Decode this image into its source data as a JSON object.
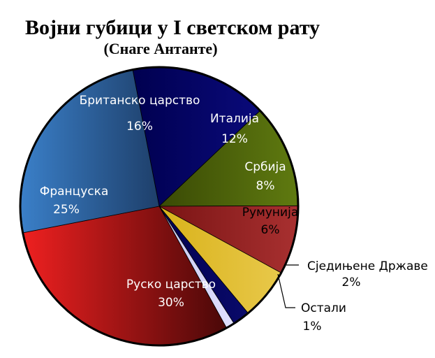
{
  "chart_data": {
    "type": "pie",
    "title": "Војни губици у I светском рату",
    "subtitle": "(Снаге Антанте)",
    "slices": [
      {
        "label": "Британско царство",
        "value": 16,
        "display": "16%",
        "color_start": "#000050",
        "color_end": "#0a0a7a",
        "text_color": "#ffffff"
      },
      {
        "label": "Италија",
        "value": 12,
        "display": "12%",
        "color_start": "#3a4a05",
        "color_end": "#5f7a10",
        "text_color": "#ffffff"
      },
      {
        "label": "Србија",
        "value": 8,
        "display": "8%",
        "color_start": "#7a1414",
        "color_end": "#a83030",
        "text_color": "#ffffff"
      },
      {
        "label": "Румунија",
        "value": 6,
        "display": "6%",
        "color_start": "#d9b21a",
        "color_end": "#e8c84a",
        "text_color": "#000000"
      },
      {
        "label": "Сједињене Државе",
        "value": 2,
        "display": "2%",
        "color_start": "#000050",
        "color_end": "#0a0a6a",
        "text_color": "#000000"
      },
      {
        "label": "Остали",
        "value": 1,
        "display": "1%",
        "color_start": "#c8c8f0",
        "color_end": "#e0e0ff",
        "text_color": "#000000"
      },
      {
        "label": "Руско царство",
        "value": 30,
        "display": "30%",
        "color_start": "#ee2020",
        "color_end": "#4a0808",
        "text_color": "#ffffff"
      },
      {
        "label": "Француска",
        "value": 25,
        "display": "25%",
        "color_start": "#3a7fc8",
        "color_end": "#1e3f6a",
        "text_color": "#ffffff"
      }
    ],
    "legend": "none"
  }
}
